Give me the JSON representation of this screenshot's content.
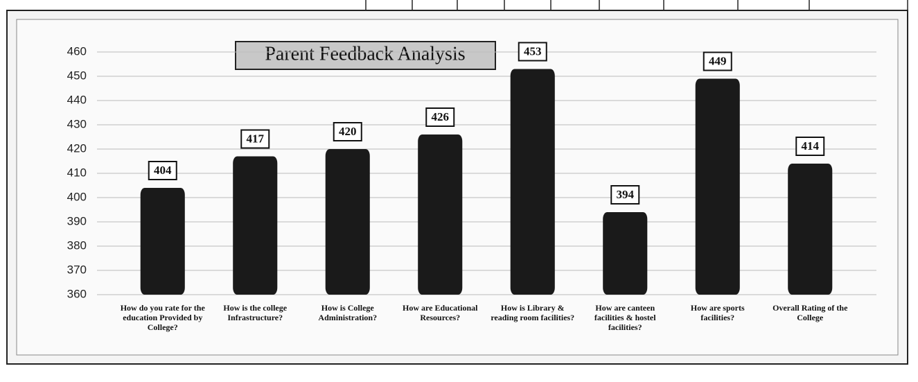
{
  "chart_data": {
    "type": "bar",
    "title": "Parent Feedback Analysis",
    "categories": [
      "How do you rate for the education Provided by College?",
      "How is the college Infrastructure?",
      "How is College Administration?",
      "How are Educational Resources?",
      "How is Library & reading room facilities?",
      "How are canteen facilities & hostel facilities?",
      "How are sports facilities?",
      "Overall Rating of the College"
    ],
    "values": [
      404,
      417,
      420,
      426,
      453,
      394,
      449,
      414
    ],
    "color": "#1a1a1a",
    "ylim": [
      360,
      460
    ],
    "yticks": [
      360,
      370,
      380,
      390,
      400,
      410,
      420,
      430,
      440,
      450,
      460
    ],
    "grid": true
  }
}
